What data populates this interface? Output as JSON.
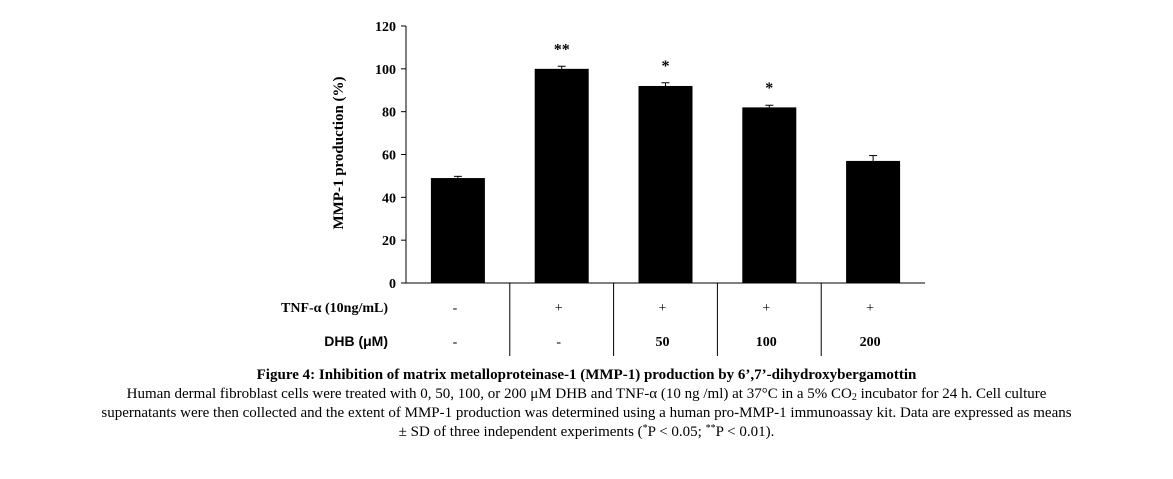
{
  "chart_data": {
    "type": "bar",
    "ylabel": "MMP-1  production (%)",
    "ylim": [
      0,
      120
    ],
    "yticks": [
      "0",
      "20",
      "40",
      "60",
      "80",
      "100",
      "120"
    ],
    "values": [
      49,
      100,
      92,
      82,
      57
    ],
    "errors": [
      0.8,
      1.2,
      1.5,
      1.0,
      2.5
    ],
    "significance": [
      "",
      "**",
      "*",
      "*",
      ""
    ],
    "bar_color": "#000000",
    "grid": false,
    "table_rows": [
      {
        "label": "TNF-α (10ng/mL)",
        "cells": [
          "-",
          "+",
          "+",
          "+",
          "+"
        ]
      },
      {
        "label": "DHB (μM)",
        "cells": [
          "-",
          "-",
          "50",
          "100",
          "200"
        ]
      }
    ]
  },
  "caption": {
    "title": "Figure 4: Inhibition of matrix metalloproteinase-1 (MMP-1) production by 6’,7’-dihydroxybergamottin",
    "line1_a": "Human dermal fibroblast cells were treated with 0, 50, 100, or 200 μM DHB and TNF-α (10 ng /ml) at 37°C in a 5% CO",
    "line1_sub": "2",
    "line1_b": " incubator for 24 h. Cell culture",
    "line2": "supernatants were then collected and the extent of MMP-1 production was determined using a human pro-MMP-1 immunoassay kit. Data are expressed as means",
    "line3_a": "± SD of three independent experiments (",
    "line3_sup1": "*",
    "line3_b": "P < 0.05; ",
    "line3_sup2": "**",
    "line3_c": "P < 0.01)."
  }
}
